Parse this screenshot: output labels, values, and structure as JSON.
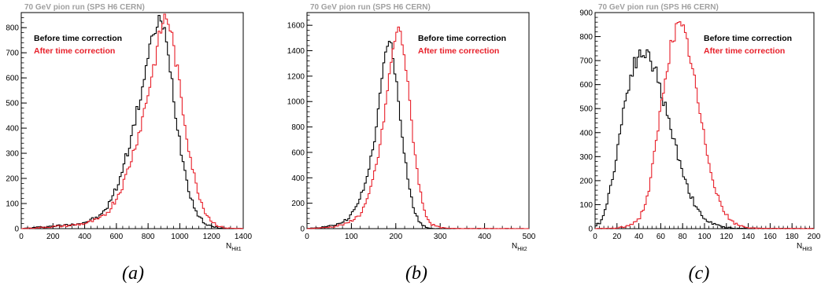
{
  "colors": {
    "before": "#000000",
    "after": "#e8202a",
    "title": "#a0a0a0"
  },
  "chart_data": [
    {
      "type": "line",
      "caption": "(a)",
      "title": "70 GeV pion run (SPS H6 CERN)",
      "xlabel": "N",
      "xlabel_sub": "Hit1",
      "xlim": [
        0,
        1400
      ],
      "ylim": [
        0,
        860
      ],
      "xticks": [
        0,
        200,
        400,
        600,
        800,
        1000,
        1200,
        1400
      ],
      "yticks": [
        0,
        100,
        200,
        300,
        400,
        500,
        600,
        700,
        800
      ],
      "legend_position": "top-left",
      "series": [
        {
          "name": "Before time correction",
          "color": "#000000",
          "peak": 830,
          "x": [
            0,
            100,
            200,
            300,
            400,
            500,
            550,
            600,
            650,
            700,
            750,
            800,
            840,
            870,
            900,
            940,
            980,
            1020,
            1060,
            1100,
            1150,
            1200,
            1250,
            1300,
            1400
          ],
          "y": [
            0,
            5,
            10,
            15,
            25,
            50,
            95,
            160,
            260,
            380,
            520,
            680,
            790,
            830,
            790,
            640,
            430,
            270,
            150,
            70,
            25,
            8,
            3,
            1,
            0
          ]
        },
        {
          "name": "After time correction",
          "color": "#e8202a",
          "peak": 850,
          "x": [
            0,
            100,
            200,
            300,
            400,
            500,
            550,
            600,
            650,
            700,
            750,
            800,
            850,
            880,
            910,
            940,
            980,
            1020,
            1060,
            1100,
            1150,
            1200,
            1250,
            1300,
            1400
          ],
          "y": [
            0,
            3,
            8,
            12,
            20,
            40,
            70,
            120,
            190,
            290,
            400,
            540,
            690,
            790,
            850,
            800,
            650,
            470,
            310,
            180,
            80,
            30,
            8,
            2,
            0
          ]
        }
      ]
    },
    {
      "type": "line",
      "caption": "(b)",
      "title": "70 GeV pion run (SPS H6 CERN)",
      "xlabel": "N",
      "xlabel_sub": "Hit2",
      "xlim": [
        0,
        500
      ],
      "ylim": [
        0,
        1700
      ],
      "xticks": [
        0,
        100,
        200,
        300,
        400,
        500
      ],
      "yticks": [
        0,
        200,
        400,
        600,
        800,
        1000,
        1200,
        1400,
        1600
      ],
      "legend_position": "top-right",
      "series": [
        {
          "name": "Before time correction",
          "color": "#000000",
          "peak": 1490,
          "x": [
            0,
            30,
            60,
            90,
            110,
            130,
            150,
            160,
            170,
            180,
            190,
            200,
            210,
            220,
            230,
            240,
            250,
            260,
            270,
            280,
            300,
            500
          ],
          "y": [
            0,
            10,
            25,
            70,
            160,
            330,
            650,
            900,
            1200,
            1460,
            1440,
            1200,
            880,
            580,
            330,
            160,
            70,
            25,
            10,
            3,
            0,
            0
          ]
        },
        {
          "name": "After time correction",
          "color": "#e8202a",
          "peak": 1590,
          "x": [
            0,
            30,
            60,
            90,
            120,
            140,
            160,
            170,
            180,
            190,
            200,
            210,
            220,
            230,
            240,
            250,
            260,
            270,
            280,
            300,
            320,
            500
          ],
          "y": [
            0,
            5,
            15,
            40,
            110,
            260,
            560,
            780,
            1050,
            1320,
            1530,
            1570,
            1350,
            1030,
            690,
            410,
            200,
            90,
            35,
            8,
            2,
            0
          ]
        }
      ]
    },
    {
      "type": "line",
      "caption": "(c)",
      "title": "70 GeV pion run (SPS H6 CERN)",
      "xlabel": "N",
      "xlabel_sub": "Hit3",
      "xlim": [
        0,
        200
      ],
      "ylim": [
        0,
        900
      ],
      "xticks": [
        0,
        20,
        40,
        60,
        80,
        100,
        120,
        140,
        160,
        180,
        200
      ],
      "yticks": [
        0,
        100,
        200,
        300,
        400,
        500,
        600,
        700,
        800,
        900
      ],
      "legend_position": "top-right",
      "series": [
        {
          "name": "Before time correction",
          "color": "#000000",
          "peak": 740,
          "x": [
            0,
            5,
            10,
            15,
            20,
            25,
            30,
            35,
            40,
            45,
            50,
            55,
            60,
            65,
            70,
            75,
            80,
            85,
            90,
            95,
            100,
            110,
            120,
            130,
            200
          ],
          "y": [
            5,
            30,
            90,
            190,
            320,
            470,
            590,
            680,
            720,
            735,
            710,
            660,
            580,
            490,
            400,
            320,
            240,
            170,
            110,
            70,
            40,
            15,
            5,
            1,
            0
          ]
        },
        {
          "name": "After time correction",
          "color": "#e8202a",
          "peak": 850,
          "x": [
            0,
            20,
            30,
            40,
            45,
            50,
            55,
            60,
            65,
            70,
            75,
            80,
            85,
            90,
            95,
            100,
            105,
            110,
            115,
            120,
            125,
            130,
            140,
            150,
            200
          ],
          "y": [
            0,
            2,
            10,
            40,
            90,
            180,
            330,
            500,
            660,
            780,
            840,
            830,
            760,
            640,
            500,
            370,
            260,
            170,
            100,
            55,
            30,
            15,
            4,
            1,
            0
          ]
        }
      ]
    }
  ]
}
